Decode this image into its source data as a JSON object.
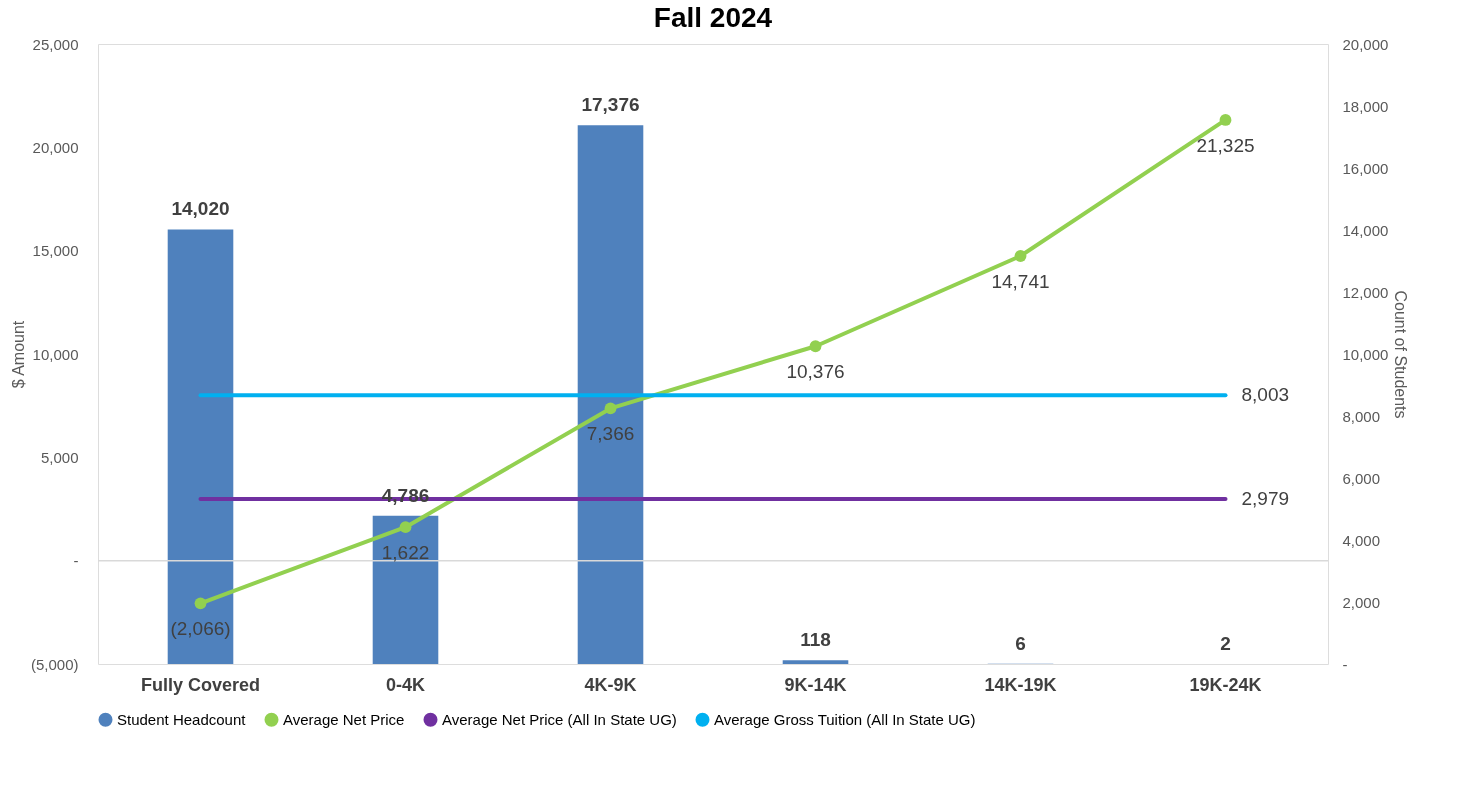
{
  "chart_data": {
    "type": "bar",
    "title": "Fall 2024",
    "ylabel": "$ Amount",
    "y2label": "Count of Students",
    "categories": [
      "Fully Covered",
      "0-4K",
      "4K-9K",
      "9K-14K",
      "14K-19K",
      "19K-24K"
    ],
    "series": [
      {
        "name": "Student Headcount",
        "axis": "y2",
        "color": "#4f81bd",
        "values": [
          14020,
          4786,
          17376,
          118,
          6,
          2
        ],
        "value_labels": [
          "14,020",
          "4,786",
          "17,376",
          "118",
          "6",
          "2"
        ]
      },
      {
        "name": "Average Net Price",
        "type": "line",
        "marker": "circle",
        "color": "#92d050",
        "values": [
          -2066,
          1622,
          7366,
          10376,
          14741,
          21325
        ],
        "value_labels": [
          "(2,066)",
          "1,622",
          "7,366",
          "10,376",
          "14,741",
          "21,325"
        ]
      },
      {
        "name": "Average Net Price (All In State UG)",
        "type": "line",
        "marker": "none",
        "color": "#7030a0",
        "values": [
          2979,
          2979,
          2979,
          2979,
          2979,
          2979
        ],
        "value_labels": [
          null,
          null,
          null,
          null,
          null,
          "2,979"
        ]
      },
      {
        "name": "Average Gross Tuition (All In State UG)",
        "type": "line",
        "marker": "none",
        "color": "#00b0f0",
        "values": [
          8003,
          8003,
          8003,
          8003,
          8003,
          8003
        ],
        "value_labels": [
          null,
          null,
          null,
          null,
          null,
          "8,003"
        ]
      }
    ],
    "ylim": [
      -5000,
      25000
    ],
    "yticks": [
      {
        "value": -5000,
        "label": "(5,000)"
      },
      {
        "value": 0,
        "label": "-"
      },
      {
        "value": 5000,
        "label": "5,000"
      },
      {
        "value": 10000,
        "label": "10,000"
      },
      {
        "value": 15000,
        "label": "15,000"
      },
      {
        "value": 20000,
        "label": "20,000"
      },
      {
        "value": 25000,
        "label": "25,000"
      }
    ],
    "y2lim": [
      0,
      20000
    ],
    "y2ticks": [
      {
        "value": 0,
        "label": "-"
      },
      {
        "value": 2000,
        "label": "2,000"
      },
      {
        "value": 4000,
        "label": "4,000"
      },
      {
        "value": 6000,
        "label": "6,000"
      },
      {
        "value": 8000,
        "label": "8,000"
      },
      {
        "value": 10000,
        "label": "10,000"
      },
      {
        "value": 12000,
        "label": "12,000"
      },
      {
        "value": 14000,
        "label": "14,000"
      },
      {
        "value": 16000,
        "label": "16,000"
      },
      {
        "value": 18000,
        "label": "18,000"
      },
      {
        "value": 20000,
        "label": "20,000"
      }
    ],
    "legend": "bottom"
  }
}
